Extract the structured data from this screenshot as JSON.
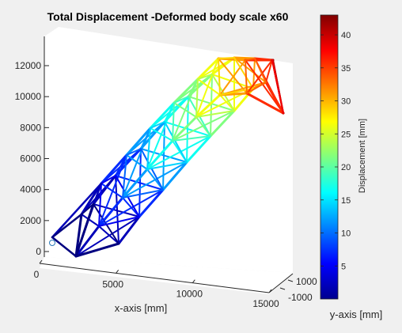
{
  "chart_data": {
    "type": "3d-truss-deformed",
    "title": "Total Displacement -Deformed body scale x60",
    "xlabel": "x-axis [mm]",
    "ylabel": "y-axis [mm]",
    "zlabel": "",
    "x_ticks": [
      "0",
      "5000",
      "10000",
      "15000"
    ],
    "y_ticks": [
      "-1000",
      "1000"
    ],
    "z_ticks": [
      "0",
      "2000",
      "4000",
      "6000",
      "8000",
      "10000",
      "12000"
    ],
    "zlim": [
      0,
      13000
    ],
    "colorbar": {
      "label": "Displacement [mm]",
      "ticks": [
        "5",
        "10",
        "15",
        "20",
        "25",
        "30",
        "35",
        "40"
      ],
      "range": [
        0,
        43
      ],
      "colormap": "jet"
    },
    "truss": {
      "panels": 9,
      "base_displacement": 0,
      "tip_displacement": 43
    },
    "colors": {
      "figure_bg": "#f0f0f0",
      "axes_bg": "#ffffff",
      "axis_line": "#262626"
    }
  }
}
